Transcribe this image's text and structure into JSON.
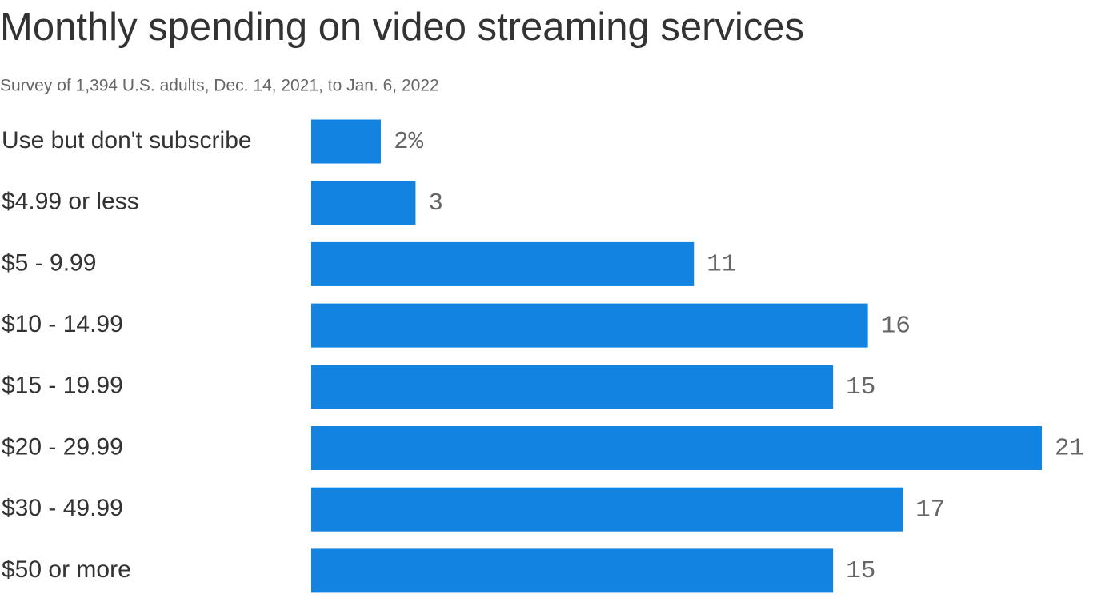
{
  "chart_data": {
    "type": "bar",
    "orientation": "horizontal",
    "title": "Monthly spending on video streaming services",
    "subtitle": "Survey of 1,394 U.S. adults, Dec. 14, 2021, to Jan. 6, 2022",
    "categories": [
      "Use but don't subscribe",
      "$4.99 or less",
      "$5 - 9.99",
      "$10 - 14.99",
      "$15 - 19.99",
      "$20 - 29.99",
      "$30 - 49.99",
      "$50 or more"
    ],
    "values": [
      2,
      3,
      11,
      16,
      15,
      21,
      17,
      15
    ],
    "value_labels": [
      "2%",
      "3",
      "11",
      "16",
      "15",
      "21",
      "17",
      "15"
    ],
    "color": "#1283e0"
  }
}
